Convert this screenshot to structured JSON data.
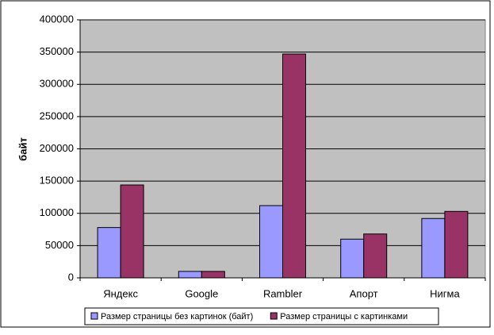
{
  "chart_data": {
    "type": "bar",
    "y_label": "байт",
    "categories": [
      "Яндекс",
      "Google",
      "Rambler",
      "Апорт",
      "Нигма"
    ],
    "series": [
      {
        "name": "Размер страницы без картинок (байт)",
        "color": "#9999ff",
        "values": [
          78000,
          10000,
          112000,
          60000,
          92000
        ]
      },
      {
        "name": "Размер страницы с картинками",
        "color": "#993366",
        "values": [
          144000,
          10000,
          347000,
          68000,
          103000
        ]
      }
    ],
    "ylim": [
      0,
      400000
    ],
    "yticks": [
      0,
      50000,
      100000,
      150000,
      200000,
      250000,
      300000,
      350000,
      400000
    ],
    "grid": true,
    "legend": "bottom"
  }
}
